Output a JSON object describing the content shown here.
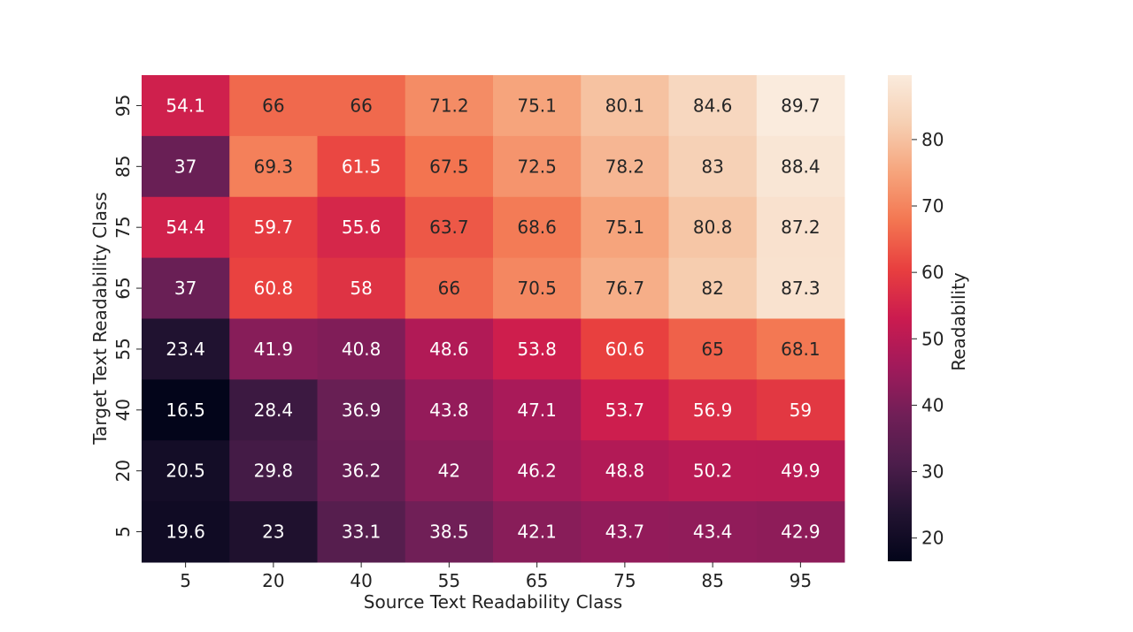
{
  "chart_data": {
    "type": "heatmap",
    "title": "",
    "xlabel": "Source Text Readability Class",
    "ylabel": "Target Text Readability Class",
    "x_categories": [
      "5",
      "20",
      "40",
      "55",
      "65",
      "75",
      "85",
      "95"
    ],
    "y_categories": [
      "95",
      "85",
      "75",
      "65",
      "55",
      "40",
      "20",
      "5"
    ],
    "values": [
      [
        54.1,
        66,
        66,
        71.2,
        75.1,
        80.1,
        84.6,
        89.7
      ],
      [
        37,
        69.3,
        61.5,
        67.5,
        72.5,
        78.2,
        83,
        88.4
      ],
      [
        54.4,
        59.7,
        55.6,
        63.7,
        68.6,
        75.1,
        80.8,
        87.2
      ],
      [
        37,
        60.8,
        58,
        66,
        70.5,
        76.7,
        82,
        87.3
      ],
      [
        23.4,
        41.9,
        40.8,
        48.6,
        53.8,
        60.6,
        65,
        68.1
      ],
      [
        16.5,
        28.4,
        36.9,
        43.8,
        47.1,
        53.7,
        56.9,
        59
      ],
      [
        20.5,
        29.8,
        36.2,
        42,
        46.2,
        48.8,
        50.2,
        49.9
      ],
      [
        19.6,
        23,
        33.1,
        38.5,
        42.1,
        43.7,
        43.4,
        42.9
      ]
    ],
    "colorbar": {
      "label": "Readability",
      "range": [
        16.5,
        89.7
      ],
      "ticks": [
        "20",
        "30",
        "40",
        "50",
        "60",
        "70",
        "80"
      ],
      "colormap": "rocket"
    },
    "annotations": true,
    "grid": false
  }
}
